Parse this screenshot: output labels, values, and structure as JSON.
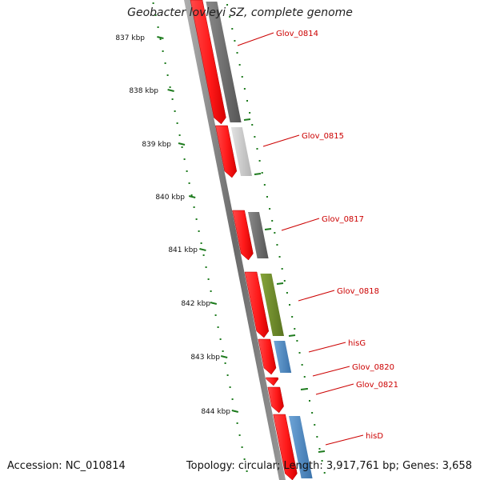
{
  "map": {
    "title": "Geobacter lovleyi SZ, complete genome",
    "footer_accession": "Accession: NC_010814",
    "footer_info": "Topology: circular; Length: 3,917,761 bp; Genes: 3,658"
  },
  "colors": {
    "cds_red": "#ff1a1a",
    "cog_dark_gray": "#6b6b6b",
    "cog_light_gray": "#c8c8c8",
    "cog_olive": "#6e8b2a",
    "cog_blue": "#4a86c0",
    "tick_green": "#1e7b1e",
    "label_red": "#cc0000"
  },
  "scale_ticks": [
    {
      "label": "837 kbp"
    },
    {
      "label": "838 kbp"
    },
    {
      "label": "839 kbp"
    },
    {
      "label": "840 kbp"
    },
    {
      "label": "841 kbp"
    },
    {
      "label": "842 kbp"
    },
    {
      "label": "843 kbp"
    },
    {
      "label": "844 kbp"
    }
  ],
  "genes": [
    {
      "label": "Glov_0814",
      "cog_color": "dark_gray"
    },
    {
      "label": "Glov_0815",
      "cog_color": "light_gray"
    },
    {
      "label": "Glov_0817",
      "cog_color": "dark_gray"
    },
    {
      "label": "Glov_0818",
      "cog_color": "olive"
    },
    {
      "label": "hisG",
      "cog_color": "blue"
    },
    {
      "label": "Glov_0820",
      "cog_color": "none"
    },
    {
      "label": "Glov_0821",
      "cog_color": "none"
    },
    {
      "label": "hisD",
      "cog_color": "blue"
    }
  ]
}
